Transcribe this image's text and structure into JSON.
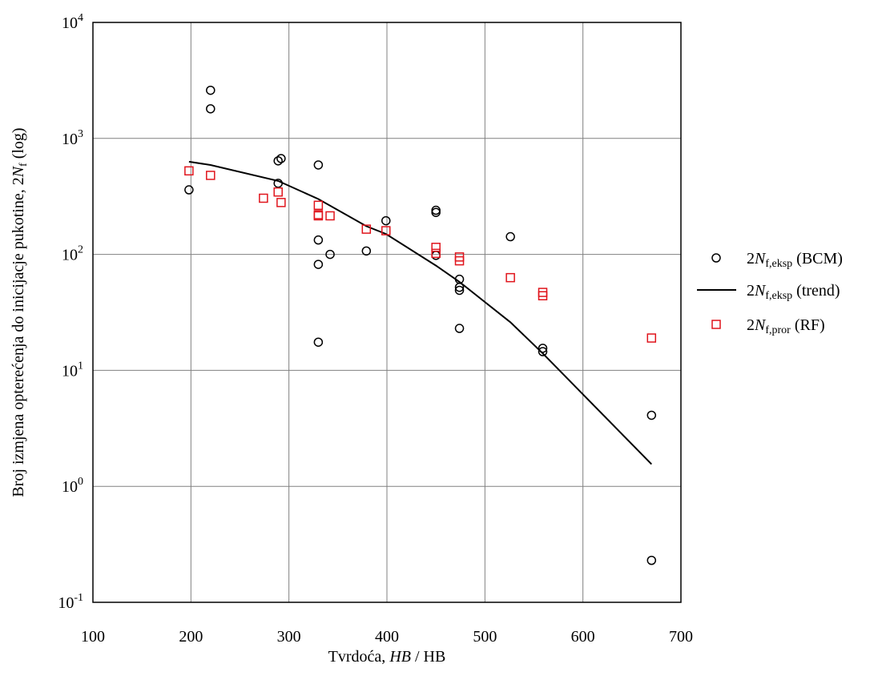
{
  "chart_data": {
    "type": "scatter",
    "xlabel": {
      "prefix": "Tvrdoća, ",
      "italic": "HB",
      "suffix": " / HB"
    },
    "ylabel": {
      "prefix": "Broj izmjena opterećenja do inicijacje pukotine, 2",
      "italic": "N",
      "sub": "f",
      "suffix": " (log)"
    },
    "x_ticks": [
      100,
      200,
      300,
      400,
      500,
      600,
      700
    ],
    "y_ticks": [
      {
        "base": "10",
        "exp": "-1",
        "value": 0.1
      },
      {
        "base": "10",
        "exp": "0",
        "value": 1
      },
      {
        "base": "10",
        "exp": "1",
        "value": 10
      },
      {
        "base": "10",
        "exp": "2",
        "value": 100
      },
      {
        "base": "10",
        "exp": "3",
        "value": 1000
      },
      {
        "base": "10",
        "exp": "4",
        "value": 10000
      }
    ],
    "xlim": [
      100,
      700
    ],
    "ylim": [
      0.1,
      10000
    ],
    "y_scale": "log",
    "grid": true,
    "legend_position": "right",
    "series": [
      {
        "name": "2Nf,eksp (BCM)",
        "legend": {
          "pre": "2",
          "italic": "N",
          "sub": "f,eksp",
          "post": " (BCM)"
        },
        "marker": "circle",
        "color": "#000000",
        "points": [
          [
            198,
            360
          ],
          [
            220,
            2600
          ],
          [
            220,
            1800
          ],
          [
            289,
            640
          ],
          [
            292,
            670
          ],
          [
            289,
            410
          ],
          [
            330,
            590
          ],
          [
            330,
            133
          ],
          [
            330,
            82
          ],
          [
            342,
            100
          ],
          [
            330,
            17.5
          ],
          [
            379,
            107
          ],
          [
            399,
            195
          ],
          [
            450,
            240
          ],
          [
            450,
            230
          ],
          [
            450,
            98
          ],
          [
            474,
            61
          ],
          [
            474,
            52
          ],
          [
            474,
            49
          ],
          [
            474,
            23
          ],
          [
            526,
            142
          ],
          [
            559,
            15.5
          ],
          [
            559,
            14.5
          ],
          [
            670,
            4.1
          ],
          [
            670,
            0.23
          ]
        ]
      },
      {
        "name": "2Nf,eksp (trend)",
        "legend": {
          "pre": "2",
          "italic": "N",
          "sub": "f,eksp",
          "post": " (trend)"
        },
        "marker": "line",
        "color": "#000000",
        "points": [
          [
            198,
            630
          ],
          [
            220,
            590
          ],
          [
            289,
            430
          ],
          [
            330,
            300
          ],
          [
            379,
            175
          ],
          [
            399,
            150
          ],
          [
            450,
            80
          ],
          [
            474,
            58
          ],
          [
            526,
            26
          ],
          [
            559,
            14
          ],
          [
            670,
            1.55
          ]
        ]
      },
      {
        "name": "2Nf,pror (RF)",
        "legend": {
          "pre": "2",
          "italic": "N",
          "sub": "f,pror",
          "post": " (RF)"
        },
        "marker": "square",
        "color": "#e0141c",
        "points": [
          [
            198,
            525
          ],
          [
            220,
            480
          ],
          [
            274,
            305
          ],
          [
            289,
            345
          ],
          [
            292,
            280
          ],
          [
            330,
            265
          ],
          [
            330,
            220
          ],
          [
            330,
            215
          ],
          [
            342,
            215
          ],
          [
            379,
            165
          ],
          [
            399,
            160
          ],
          [
            450,
            115
          ],
          [
            450,
            102
          ],
          [
            474,
            95
          ],
          [
            474,
            88
          ],
          [
            526,
            63
          ],
          [
            559,
            47
          ],
          [
            559,
            44
          ],
          [
            670,
            19
          ]
        ]
      }
    ]
  }
}
